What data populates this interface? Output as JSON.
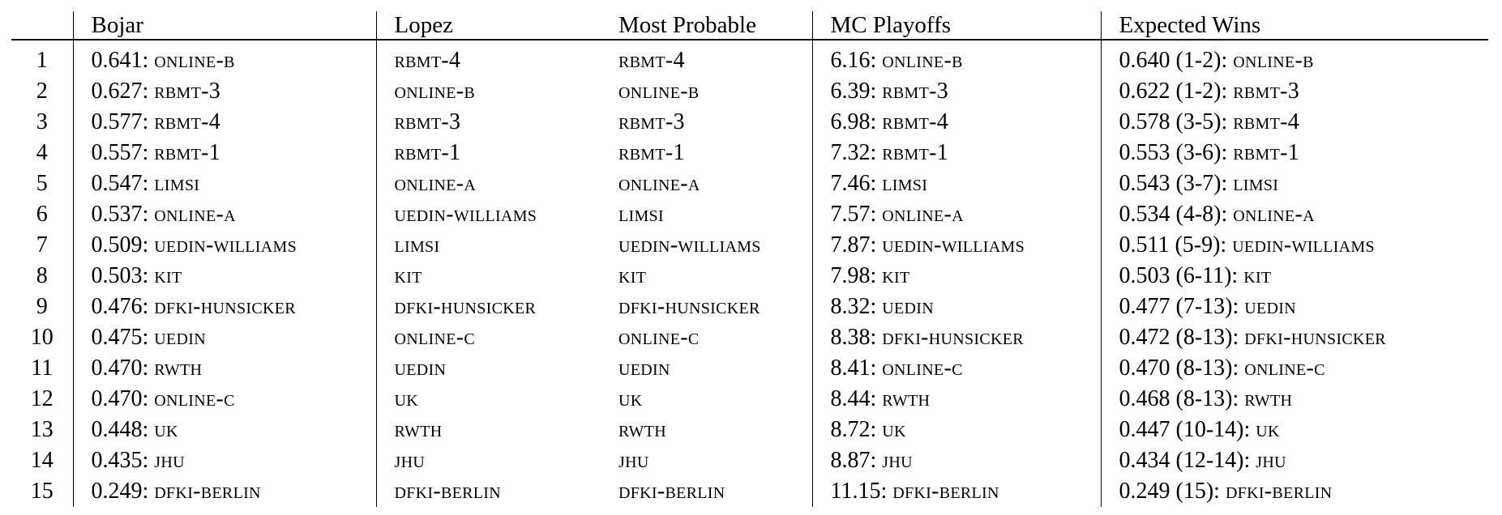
{
  "headers": [
    "",
    "Bojar",
    "Lopez",
    "Most Probable",
    "MC Playoffs",
    "Expected Wins"
  ],
  "rows": [
    {
      "rank": "1",
      "bojar": {
        "score": "0.641:",
        "system": "online-b"
      },
      "lopez": "rbmt-4",
      "most_probable": "rbmt-4",
      "mc": {
        "score": "6.16:",
        "system": "online-b"
      },
      "ew": {
        "score": "0.640 (1-2):",
        "system": "online-b"
      }
    },
    {
      "rank": "2",
      "bojar": {
        "score": "0.627:",
        "system": "rbmt-3"
      },
      "lopez": "online-b",
      "most_probable": "online-b",
      "mc": {
        "score": "6.39:",
        "system": "rbmt-3"
      },
      "ew": {
        "score": "0.622 (1-2):",
        "system": "rbmt-3"
      }
    },
    {
      "rank": "3",
      "bojar": {
        "score": "0.577:",
        "system": "rbmt-4"
      },
      "lopez": "rbmt-3",
      "most_probable": "rbmt-3",
      "mc": {
        "score": "6.98:",
        "system": "rbmt-4"
      },
      "ew": {
        "score": "0.578 (3-5):",
        "system": "rbmt-4"
      }
    },
    {
      "rank": "4",
      "bojar": {
        "score": "0.557:",
        "system": "rbmt-1"
      },
      "lopez": "rbmt-1",
      "most_probable": "rbmt-1",
      "mc": {
        "score": "7.32:",
        "system": "rbmt-1"
      },
      "ew": {
        "score": "0.553 (3-6):",
        "system": "rbmt-1"
      }
    },
    {
      "rank": "5",
      "bojar": {
        "score": "0.547:",
        "system": "limsi"
      },
      "lopez": "online-a",
      "most_probable": "online-a",
      "mc": {
        "score": "7.46:",
        "system": "limsi"
      },
      "ew": {
        "score": "0.543 (3-7):",
        "system": "limsi"
      }
    },
    {
      "rank": "6",
      "bojar": {
        "score": "0.537:",
        "system": "online-a"
      },
      "lopez": "uedin-williams",
      "most_probable": "limsi",
      "mc": {
        "score": "7.57:",
        "system": "online-a"
      },
      "ew": {
        "score": "0.534 (4-8):",
        "system": "online-a"
      }
    },
    {
      "rank": "7",
      "bojar": {
        "score": "0.509:",
        "system": "uedin-williams"
      },
      "lopez": "limsi",
      "most_probable": "uedin-williams",
      "mc": {
        "score": "7.87:",
        "system": "uedin-williams"
      },
      "ew": {
        "score": "0.511 (5-9):",
        "system": "uedin-williams"
      }
    },
    {
      "rank": "8",
      "bojar": {
        "score": "0.503:",
        "system": "kit"
      },
      "lopez": "kit",
      "most_probable": "kit",
      "mc": {
        "score": "7.98:",
        "system": "kit"
      },
      "ew": {
        "score": "0.503 (6-11):",
        "system": "kit"
      }
    },
    {
      "rank": "9",
      "bojar": {
        "score": "0.476:",
        "system": "dfki-hunsicker"
      },
      "lopez": "dfki-hunsicker",
      "most_probable": "dfki-hunsicker",
      "mc": {
        "score": "8.32:",
        "system": "uedin"
      },
      "ew": {
        "score": "0.477 (7-13):",
        "system": "uedin"
      }
    },
    {
      "rank": "10",
      "bojar": {
        "score": "0.475:",
        "system": "uedin"
      },
      "lopez": "online-c",
      "most_probable": "online-c",
      "mc": {
        "score": "8.38:",
        "system": "dfki-hunsicker"
      },
      "ew": {
        "score": "0.472 (8-13):",
        "system": "dfki-hunsicker"
      }
    },
    {
      "rank": "11",
      "bojar": {
        "score": "0.470:",
        "system": "rwth"
      },
      "lopez": "uedin",
      "most_probable": "uedin",
      "mc": {
        "score": "8.41:",
        "system": "online-c"
      },
      "ew": {
        "score": "0.470 (8-13):",
        "system": "online-c"
      }
    },
    {
      "rank": "12",
      "bojar": {
        "score": "0.470:",
        "system": "online-c"
      },
      "lopez": "uk",
      "most_probable": "uk",
      "mc": {
        "score": "8.44:",
        "system": "rwth"
      },
      "ew": {
        "score": "0.468 (8-13):",
        "system": "rwth"
      }
    },
    {
      "rank": "13",
      "bojar": {
        "score": "0.448:",
        "system": "uk"
      },
      "lopez": "rwth",
      "most_probable": "rwth",
      "mc": {
        "score": "8.72:",
        "system": "uk"
      },
      "ew": {
        "score": "0.447 (10-14):",
        "system": "uk"
      }
    },
    {
      "rank": "14",
      "bojar": {
        "score": "0.435:",
        "system": "jhu"
      },
      "lopez": "jhu",
      "most_probable": "jhu",
      "mc": {
        "score": "8.87:",
        "system": "jhu"
      },
      "ew": {
        "score": "0.434 (12-14):",
        "system": "jhu"
      }
    },
    {
      "rank": "15",
      "bojar": {
        "score": "0.249:",
        "system": "dfki-berlin"
      },
      "lopez": "dfki-berlin",
      "most_probable": "dfki-berlin",
      "mc": {
        "score": "11.15:",
        "system": "dfki-berlin"
      },
      "ew": {
        "score": "0.249 (15):",
        "system": "dfki-berlin"
      }
    }
  ]
}
